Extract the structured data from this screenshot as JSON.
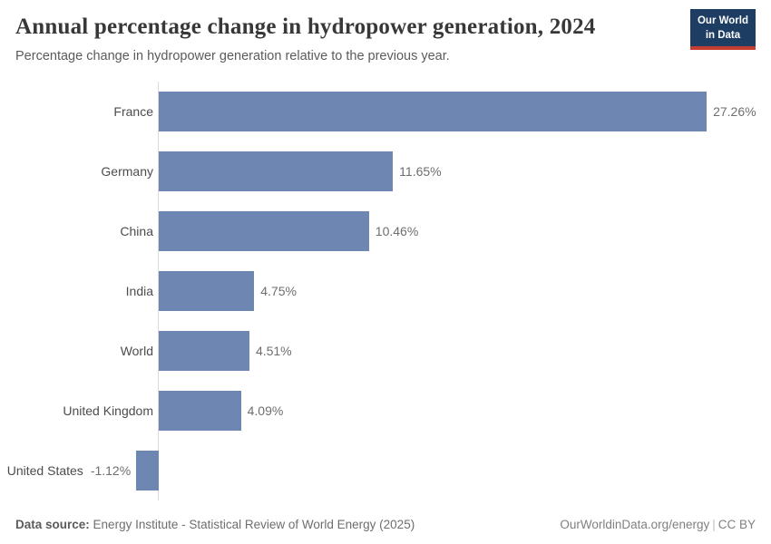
{
  "header": {
    "title": "Annual percentage change in hydropower generation, 2024",
    "subtitle": "Percentage change in hydropower generation relative to the previous year.",
    "logo": {
      "line1": "Our World",
      "line2": "in Data"
    }
  },
  "chart_data": {
    "type": "bar",
    "orientation": "horizontal",
    "title": "Annual percentage change in hydropower generation, 2024",
    "categories": [
      "France",
      "Germany",
      "China",
      "India",
      "World",
      "United Kingdom",
      "United States"
    ],
    "values": [
      27.26,
      11.65,
      10.46,
      4.75,
      4.51,
      4.09,
      -1.12
    ],
    "value_labels": [
      "27.26%",
      "11.65%",
      "10.46%",
      "4.75%",
      "4.51%",
      "4.09%",
      "-1.12%"
    ],
    "xlabel": "",
    "ylabel": "",
    "xlim": [
      -1.12,
      27.26
    ],
    "unit": "%",
    "grid": false,
    "legend": "none",
    "bar_color": "#6e87b2"
  },
  "colors": {
    "bar": "#6e87b2",
    "axis_line": "#dcdcdc",
    "logo_background": "#1d3d63",
    "logo_underline": "#c53c33"
  },
  "footer": {
    "datasource_label": "Data source:",
    "datasource_text": "Energy Institute - Statistical Review of World Energy (2025)",
    "link_text": "OurWorldinData.org/energy",
    "separator": "|",
    "license_text": "CC BY"
  }
}
